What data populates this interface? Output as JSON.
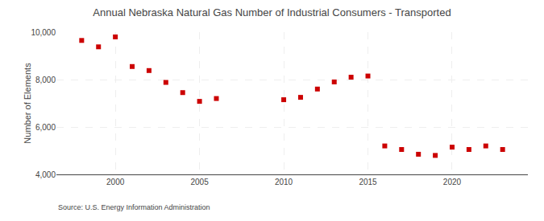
{
  "chart_data": {
    "type": "scatter",
    "title": "Annual Nebraska Natural Gas Number of Industrial Consumers - Transported",
    "ylabel": "Number of Elements",
    "annotations": [
      "Source: U.S. Energy Information Administration"
    ],
    "x": [
      1998,
      1999,
      2000,
      2001,
      2002,
      2003,
      2004,
      2005,
      2006,
      2010,
      2011,
      2012,
      2013,
      2014,
      2015,
      2016,
      2017,
      2018,
      2019,
      2020,
      2021,
      2022,
      2023
    ],
    "values": [
      9650,
      9380,
      9800,
      8550,
      8380,
      7880,
      7450,
      7080,
      7200,
      7150,
      7250,
      7600,
      7900,
      8100,
      8150,
      5200,
      5050,
      4850,
      4800,
      5150,
      5050,
      5200,
      5050
    ],
    "color": "#cc0000",
    "marker": "square",
    "xlim": [
      1996.5,
      2024.5
    ],
    "xticks": [
      2000,
      2005,
      2010,
      2015,
      2020
    ],
    "ylim": [
      4000,
      10000
    ],
    "yticks": [
      {
        "value": 4000,
        "label": "4,000"
      },
      {
        "value": 6000,
        "label": "6,000"
      },
      {
        "value": 8000,
        "label": "8,000"
      },
      {
        "value": 10000,
        "label": "10,000"
      }
    ],
    "grid": true
  }
}
